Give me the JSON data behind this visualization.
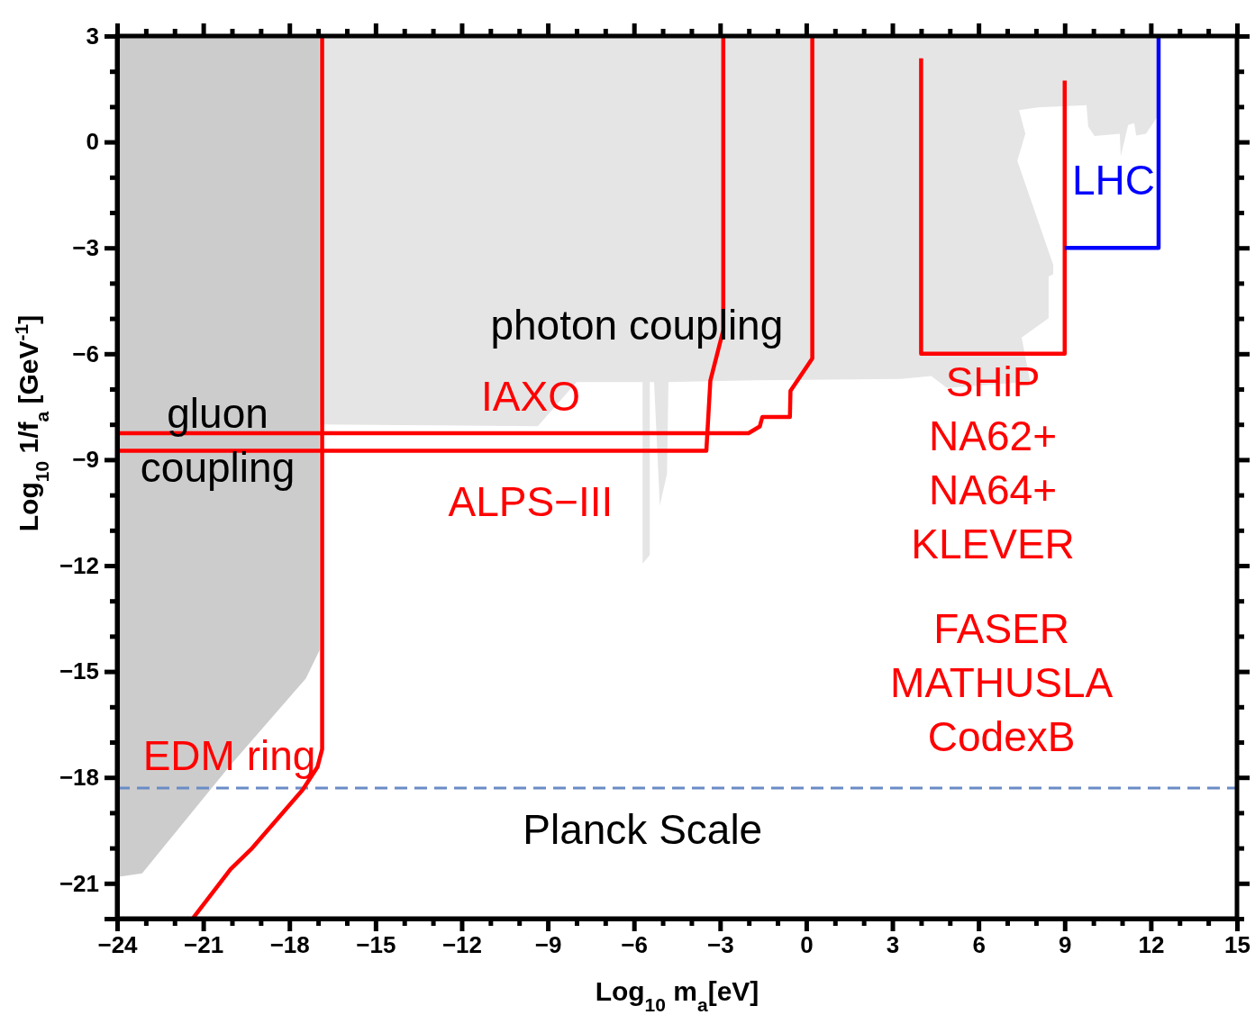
{
  "chart_data": {
    "type": "line",
    "xlabel": "Log$_{10}$ m$_{a}$[eV]",
    "ylabel": "Log$_{10}$ 1/f$_{a}$ [GeV$^{-1}$]",
    "xlim": [
      -24,
      15
    ],
    "ylim": [
      -22,
      3
    ],
    "xticks": [
      {
        "value": -24,
        "label": "−24"
      },
      {
        "value": -23,
        "label": null
      },
      {
        "value": -22,
        "label": null
      },
      {
        "value": -21,
        "label": "−21"
      },
      {
        "value": -20,
        "label": null
      },
      {
        "value": -19,
        "label": null
      },
      {
        "value": -18,
        "label": "−18"
      },
      {
        "value": -17,
        "label": null
      },
      {
        "value": -16,
        "label": null
      },
      {
        "value": -15,
        "label": "−15"
      },
      {
        "value": -14,
        "label": null
      },
      {
        "value": -13,
        "label": null
      },
      {
        "value": -12,
        "label": "−12"
      },
      {
        "value": -11,
        "label": null
      },
      {
        "value": -10,
        "label": null
      },
      {
        "value": -9,
        "label": "−9"
      },
      {
        "value": -8,
        "label": null
      },
      {
        "value": -7,
        "label": null
      },
      {
        "value": -6,
        "label": "−6"
      },
      {
        "value": -5,
        "label": null
      },
      {
        "value": -4,
        "label": null
      },
      {
        "value": -3,
        "label": "−3"
      },
      {
        "value": -2,
        "label": null
      },
      {
        "value": -1,
        "label": null
      },
      0,
      {
        "value": 1,
        "label": null
      },
      {
        "value": 2,
        "label": null
      },
      3,
      {
        "value": 4,
        "label": null
      },
      {
        "value": 5,
        "label": null
      },
      6,
      {
        "value": 7,
        "label": null
      },
      {
        "value": 8,
        "label": null
      },
      9,
      {
        "value": 10,
        "label": null
      },
      {
        "value": 11,
        "label": null
      },
      12,
      {
        "value": 13,
        "label": null
      },
      {
        "value": 14,
        "label": null
      },
      15
    ],
    "yticks": [
      {
        "value": -22,
        "label": null
      },
      {
        "value": -21,
        "label": "−21"
      },
      {
        "value": -20,
        "label": null
      },
      {
        "value": -19,
        "label": null
      },
      {
        "value": -18,
        "label": "−18"
      },
      {
        "value": -17,
        "label": null
      },
      {
        "value": -16,
        "label": null
      },
      {
        "value": -15,
        "label": "−15"
      },
      {
        "value": -14,
        "label": null
      },
      {
        "value": -13,
        "label": null
      },
      {
        "value": -12,
        "label": "−12"
      },
      {
        "value": -11,
        "label": null
      },
      {
        "value": -10,
        "label": null
      },
      {
        "value": -9,
        "label": "−9"
      },
      {
        "value": -8,
        "label": null
      },
      {
        "value": -7,
        "label": null
      },
      {
        "value": -6,
        "label": "−6"
      },
      {
        "value": -5,
        "label": null
      },
      {
        "value": -4,
        "label": null
      },
      {
        "value": -3,
        "label": "−3"
      },
      {
        "value": -2,
        "label": null
      },
      {
        "value": -1,
        "label": null
      },
      0,
      {
        "value": 1,
        "label": null
      },
      {
        "value": 2,
        "label": null
      },
      3
    ],
    "series": [
      {
        "name": "gluon coupling",
        "type": "area",
        "color": "#cccccc",
        "x": [
          -24,
          -16.95,
          -16.95,
          -17.43,
          -20.03,
          -23.13,
          -24
        ],
        "values": [
          3,
          3,
          -14.4,
          -15.2,
          -17.63,
          -20.72,
          -20.82
        ]
      },
      {
        "name": "photon coupling",
        "type": "area",
        "color": "#e5e5e5",
        "x": [
          -16.95,
          -16.95,
          -9.35,
          -8.0,
          -5.7,
          -5.7,
          -5.45,
          -5.45,
          -5.3,
          -5.1,
          -4.85,
          -4.8,
          -1.8,
          3.3,
          4.35,
          4.9,
          7.8,
          7.5,
          8.44,
          8.44,
          8.6,
          8.6,
          7.35,
          7.63,
          7.41,
          8.07,
          9.76,
          9.82,
          10.04,
          10.92,
          10.95,
          11.21,
          11.42,
          11.49,
          11.83,
          12.21,
          12.21
        ],
        "values": [
          3,
          -8.0,
          -8.05,
          -6.8,
          -6.8,
          -11.94,
          -11.7,
          -6.8,
          -6.8,
          -10.3,
          -9.4,
          -6.8,
          -6.75,
          -6.71,
          -6.63,
          -6.97,
          -6.79,
          -5.54,
          -4.99,
          -3.81,
          -3.75,
          -3.48,
          -0.53,
          0.23,
          0.9,
          0.98,
          1.04,
          0.43,
          0.17,
          0.23,
          -0.41,
          0.48,
          0.53,
          0.18,
          0.23,
          0.69,
          3
        ]
      },
      {
        "name": "IAXO",
        "color": "#ff0000",
        "x": [
          -24,
          -2.01,
          -1.62,
          -1.53,
          -0.57,
          -0.55,
          0.21,
          0.21
        ],
        "values": [
          -8.25,
          -8.25,
          -8.06,
          -7.79,
          -7.79,
          -7.05,
          -6.13,
          3
        ]
      },
      {
        "name": "ALPS−III",
        "color": "#ff0000",
        "x": [
          -24,
          -3.48,
          -3.34,
          -2.89,
          -2.89
        ],
        "values": [
          -8.75,
          -8.75,
          -6.76,
          -5.33,
          3
        ]
      },
      {
        "name": "SHiP NA62+ NA64+ KLEVER",
        "color": "#ff0000",
        "x": [
          4,
          4,
          9,
          9
        ],
        "values": [
          2.37,
          -6,
          -6,
          1.74
        ]
      },
      {
        "name": "LHC",
        "color": "#0000ff",
        "x": [
          9,
          12.27,
          12.27
        ],
        "values": [
          -3,
          -3,
          3
        ]
      },
      {
        "name": "EDM ring",
        "color": "#ff0000",
        "x": [
          -16.86,
          -16.86,
          -17.02,
          -17.54,
          -19.34,
          -20.05,
          -21.37
        ],
        "values": [
          3,
          -17.2,
          -17.7,
          -18.35,
          -20.04,
          -20.6,
          -22
        ]
      }
    ],
    "ref_lines": [
      {
        "axis": "y",
        "value": -18.3,
        "label": "Planck Scale",
        "color": "#6a8cc6",
        "line_style": "dashed"
      }
    ],
    "annotations": [
      "FASER MATHUSLA CodexB"
    ]
  }
}
